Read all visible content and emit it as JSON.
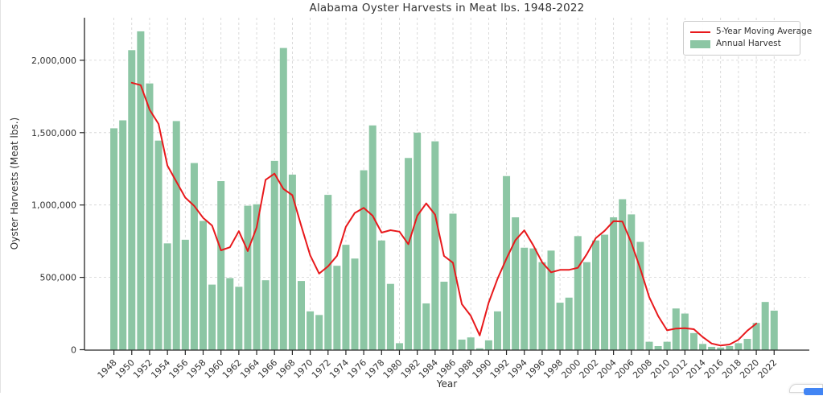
{
  "chart_data": {
    "type": "bar",
    "title": "Alabama Oyster Harvests in Meat lbs. 1948-2022",
    "xlabel": "Year",
    "ylabel": "Oyster Harvests (Meat lbs.)",
    "ylim": [
      0,
      2300000
    ],
    "grid": true,
    "legend_position": "upper right",
    "categories": [
      1948,
      1949,
      1950,
      1951,
      1952,
      1953,
      1954,
      1955,
      1956,
      1957,
      1958,
      1959,
      1960,
      1961,
      1962,
      1963,
      1964,
      1965,
      1966,
      1967,
      1968,
      1969,
      1970,
      1971,
      1972,
      1973,
      1974,
      1975,
      1976,
      1977,
      1978,
      1979,
      1980,
      1981,
      1982,
      1983,
      1984,
      1985,
      1986,
      1987,
      1988,
      1989,
      1990,
      1991,
      1992,
      1993,
      1994,
      1995,
      1996,
      1997,
      1998,
      1999,
      2000,
      2001,
      2002,
      2003,
      2004,
      2005,
      2006,
      2007,
      2008,
      2009,
      2010,
      2011,
      2012,
      2013,
      2014,
      2015,
      2016,
      2017,
      2018,
      2019,
      2020,
      2021,
      2022
    ],
    "series": [
      {
        "name": "Annual Harvest",
        "type": "bar",
        "color": "#8cc6a4",
        "values": [
          1530000,
          1585000,
          2070000,
          2200000,
          1840000,
          1445000,
          735000,
          1580000,
          760000,
          1290000,
          890000,
          450000,
          1165000,
          495000,
          435000,
          995000,
          1005000,
          480000,
          1305000,
          2085000,
          1210000,
          475000,
          265000,
          240000,
          1070000,
          580000,
          725000,
          630000,
          1240000,
          1550000,
          755000,
          455000,
          45000,
          1325000,
          1500000,
          320000,
          1440000,
          470000,
          940000,
          70000,
          85000,
          10000,
          65000,
          265000,
          1200000,
          915000,
          705000,
          700000,
          605000,
          685000,
          325000,
          360000,
          785000,
          605000,
          755000,
          795000,
          915000,
          1040000,
          935000,
          745000,
          55000,
          25000,
          55000,
          285000,
          250000,
          115000,
          40000,
          20000,
          15000,
          25000,
          45000,
          75000,
          185000,
          330000,
          270000
        ]
      },
      {
        "name": "5-Year Moving Average",
        "type": "line",
        "color": "#e8191c",
        "x_start": 1950,
        "x_end": 2020,
        "values": [
          1845000,
          1828000,
          1658000,
          1560000,
          1272000,
          1162000,
          1051000,
          994000,
          911000,
          858000,
          687000,
          708000,
          819000,
          682000,
          844000,
          1174000,
          1217000,
          1111000,
          1068000,
          855000,
          652000,
          526000,
          576000,
          649000,
          849000,
          945000,
          980000,
          926000,
          809000,
          826000,
          816000,
          729000,
          926000,
          1011000,
          934000,
          648000,
          601000,
          315000,
          234000,
          99000,
          325000,
          491000,
          630000,
          757000,
          825000,
          722000,
          604000,
          535000,
          552000,
          552000,
          566000,
          660000,
          771000,
          822000,
          888000,
          886000,
          738000,
          560000,
          363000,
          233000,
          134000,
          146000,
          149000,
          142000,
          88000,
          43000,
          29000,
          36000,
          69000,
          132000,
          181000
        ]
      }
    ],
    "y_ticks": {
      "values": [
        0,
        500000,
        1000000,
        1500000,
        2000000
      ],
      "labels": [
        "0",
        "500,000",
        "1,000,000",
        "1,500,000",
        "2,000,000"
      ]
    },
    "x_ticks": {
      "values": [
        1948,
        1950,
        1952,
        1954,
        1956,
        1958,
        1960,
        1962,
        1964,
        1966,
        1968,
        1970,
        1972,
        1974,
        1976,
        1978,
        1980,
        1982,
        1984,
        1986,
        1988,
        1990,
        1992,
        1994,
        1996,
        1998,
        2000,
        2002,
        2004,
        2006,
        2008,
        2010,
        2012,
        2014,
        2016,
        2018,
        2020,
        2022
      ],
      "labels": [
        "1948",
        "1950",
        "1952",
        "1954",
        "1956",
        "1958",
        "1960",
        "1962",
        "1964",
        "1966",
        "1968",
        "1970",
        "1972",
        "1974",
        "1976",
        "1978",
        "1980",
        "1982",
        "1984",
        "1986",
        "1988",
        "1990",
        "1992",
        "1994",
        "1996",
        "1998",
        "2000",
        "2002",
        "2004",
        "2006",
        "2008",
        "2010",
        "2012",
        "2014",
        "2016",
        "2018",
        "2020",
        "2022"
      ]
    },
    "colors": {
      "bar": "#8cc6a4",
      "line": "#e8191c",
      "grid": "#c9c9c9",
      "axis": "#262626",
      "text": "#333333"
    }
  },
  "legend": {
    "items": [
      {
        "label": "5-Year Moving Average",
        "swatch": "line"
      },
      {
        "label": "Annual Harvest",
        "swatch": "patch"
      }
    ]
  },
  "overlay": {
    "description": "browser corner popup",
    "color": "#4285f4"
  }
}
